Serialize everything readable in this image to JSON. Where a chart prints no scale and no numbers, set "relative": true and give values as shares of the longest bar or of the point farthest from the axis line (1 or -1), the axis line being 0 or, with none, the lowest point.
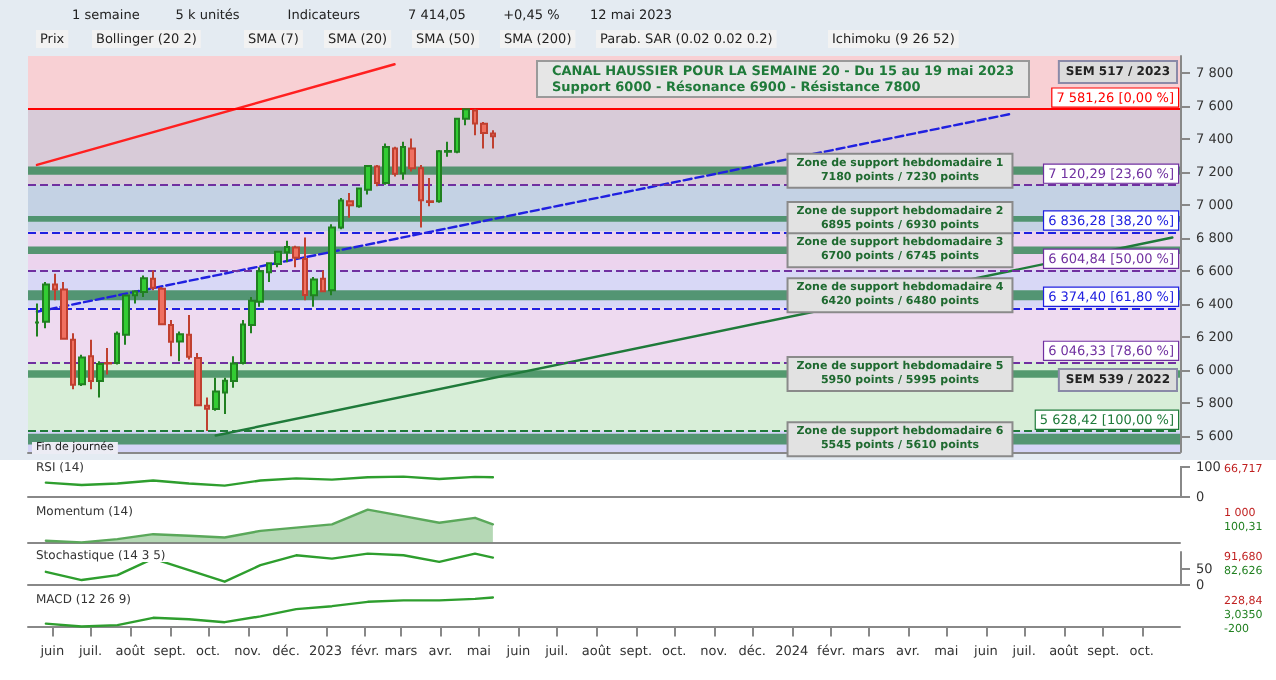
{
  "chart_data": [
    {
      "type": "candlestick",
      "title": "CANAL HAUSSIER POUR LA SEMAINE 20 - Du 15 au 19 mai 2023",
      "subtitle": "Support 6000 - Résonance 6900 - Résistance 7800",
      "x": [
        "2022-05-20",
        "2022-05-27",
        "2022-06-03",
        "2022-06-10",
        "2022-06-17",
        "2022-06-24",
        "2022-07-01",
        "2022-07-08",
        "2022-07-15",
        "2022-07-22",
        "2022-07-29",
        "2022-08-05",
        "2022-08-12",
        "2022-08-19",
        "2022-08-26",
        "2022-09-02",
        "2022-09-09",
        "2022-09-16",
        "2022-09-23",
        "2022-09-30",
        "2022-10-07",
        "2022-10-14",
        "2022-10-21",
        "2022-10-28",
        "2022-11-04",
        "2022-11-11",
        "2022-11-18",
        "2022-11-25",
        "2022-12-02",
        "2022-12-09",
        "2022-12-16",
        "2022-12-23",
        "2022-12-30",
        "2023-01-06",
        "2023-01-13",
        "2023-01-20",
        "2023-01-27",
        "2023-02-03",
        "2023-02-10",
        "2023-02-17",
        "2023-02-24",
        "2023-03-03",
        "2023-03-10",
        "2023-03-17",
        "2023-03-24",
        "2023-03-31",
        "2023-04-07",
        "2023-04-14",
        "2023-04-21",
        "2023-04-28",
        "2023-05-05",
        "2023-05-12"
      ],
      "ohlc": [
        [
          6285,
          6400,
          6200,
          6285
        ],
        [
          6290,
          6530,
          6250,
          6515
        ],
        [
          6515,
          6580,
          6420,
          6485
        ],
        [
          6485,
          6530,
          6180,
          6187
        ],
        [
          6180,
          6220,
          5880,
          5907
        ],
        [
          5910,
          6090,
          5900,
          6073
        ],
        [
          6080,
          6180,
          5880,
          5931
        ],
        [
          5930,
          6050,
          5830,
          6033
        ],
        [
          6040,
          6130,
          5970,
          6036
        ],
        [
          6040,
          6230,
          6030,
          6217
        ],
        [
          6210,
          6450,
          6150,
          6449
        ],
        [
          6450,
          6480,
          6400,
          6472
        ],
        [
          6470,
          6570,
          6440,
          6553
        ],
        [
          6550,
          6600,
          6480,
          6495
        ],
        [
          6490,
          6500,
          6270,
          6274
        ],
        [
          6270,
          6300,
          6080,
          6168
        ],
        [
          6170,
          6230,
          6050,
          6213
        ],
        [
          6210,
          6330,
          6060,
          6077
        ],
        [
          6070,
          6100,
          5780,
          5783
        ],
        [
          5780,
          5830,
          5628,
          5762
        ],
        [
          5760,
          5950,
          5750,
          5866
        ],
        [
          5860,
          5950,
          5730,
          5932
        ],
        [
          5930,
          6080,
          5890,
          6036
        ],
        [
          6040,
          6300,
          6030,
          6273
        ],
        [
          6270,
          6440,
          6220,
          6416
        ],
        [
          6410,
          6620,
          6380,
          6595
        ],
        [
          6590,
          6650,
          6530,
          6644
        ],
        [
          6640,
          6720,
          6620,
          6713
        ],
        [
          6710,
          6780,
          6650,
          6742
        ],
        [
          6740,
          6750,
          6620,
          6677
        ],
        [
          6670,
          6800,
          6420,
          6452
        ],
        [
          6450,
          6560,
          6380,
          6546
        ],
        [
          6550,
          6600,
          6470,
          6474
        ],
        [
          6480,
          6880,
          6450,
          6860
        ],
        [
          6860,
          7040,
          6850,
          7024
        ],
        [
          7020,
          7070,
          6920,
          6995
        ],
        [
          6990,
          7100,
          6980,
          7097
        ],
        [
          7090,
          7240,
          7060,
          7234
        ],
        [
          7230,
          7240,
          7110,
          7130
        ],
        [
          7130,
          7370,
          7120,
          7348
        ],
        [
          7340,
          7350,
          7170,
          7187
        ],
        [
          7190,
          7380,
          7150,
          7348
        ],
        [
          7340,
          7400,
          7200,
          7220
        ],
        [
          7220,
          7240,
          6860,
          7026
        ],
        [
          7020,
          7160,
          6990,
          7015
        ],
        [
          7020,
          7330,
          7010,
          7322
        ],
        [
          7320,
          7380,
          7290,
          7325
        ],
        [
          7320,
          7520,
          7310,
          7519
        ],
        [
          7520,
          7581,
          7480,
          7577
        ],
        [
          7570,
          7581,
          7420,
          7491
        ],
        [
          7490,
          7500,
          7340,
          7433
        ],
        [
          7430,
          7450,
          7340,
          7414
        ]
      ],
      "series": [
        {
          "type": "line",
          "color": "#ff2020",
          "x": [
            "2022-05-20",
            "2023-02-24"
          ],
          "values": [
            7240,
            7850
          ]
        },
        {
          "type": "line",
          "color": "#1f7a3a",
          "x": [
            "2022-10-07",
            "2024-10-25"
          ],
          "values": [
            5600,
            6800
          ]
        },
        {
          "type": "line",
          "color": "#2020e0",
          "line_style": "dashed",
          "x": [
            "2022-05-20",
            "2024-06-21"
          ],
          "values": [
            6350,
            7550
          ]
        }
      ],
      "xlim": [
        "2022-05-13",
        "2024-10-31"
      ],
      "ylim": [
        5500,
        7900
      ],
      "yticks": [
        {
          "value": 5600,
          "label": "5 600"
        },
        {
          "value": 5800,
          "label": "5 800"
        },
        {
          "value": 6000,
          "label": "6 000"
        },
        {
          "value": 6200,
          "label": "6 200"
        },
        {
          "value": 6400,
          "label": "6 400"
        },
        {
          "value": 6600,
          "label": "6 600"
        },
        {
          "value": 6800,
          "label": "6 800"
        },
        {
          "value": 7000,
          "label": "7 000"
        },
        {
          "value": 7200,
          "label": "7 200"
        },
        {
          "value": 7400,
          "label": "7 400"
        },
        {
          "value": 7600,
          "label": "7 600"
        },
        {
          "value": 7800,
          "label": "7 800"
        }
      ],
      "tick_labels": "y",
      "ref_lines": [
        {
          "axis": "y",
          "value": 7581.26,
          "label": "7 581,26 [0,00 %]",
          "color": "#ff0000"
        },
        {
          "axis": "y",
          "value": 7120.29,
          "label": "7 120,29 [23,60 %]",
          "color": "#7030a0"
        },
        {
          "axis": "y",
          "value": 6836.28,
          "label": "6 836,28 [38,20 %]",
          "color": "#2020e0"
        },
        {
          "axis": "y",
          "value": 6604.84,
          "label": "6 604,84 [50,00 %]",
          "color": "#7030a0"
        },
        {
          "axis": "y",
          "value": 6374.4,
          "label": "6 374,40 [61,80 %]",
          "color": "#2020e0"
        },
        {
          "axis": "y",
          "value": 6046.33,
          "label": "6 046,33 [78,60 %]",
          "color": "#7030a0"
        },
        {
          "axis": "y",
          "value": 5628.42,
          "label": "5 628,42 [100,00 %]",
          "color": "#1f7a3a"
        }
      ],
      "bands": [
        {
          "axis": "y",
          "from": 7581.26,
          "to": 7900,
          "color": "#f8d0d4"
        },
        {
          "axis": "y",
          "from": 7120.29,
          "to": 7581.26,
          "color": "#d8cbd8"
        },
        {
          "axis": "y",
          "from": 6836.28,
          "to": 7120.29,
          "color": "#c4d2e4"
        },
        {
          "axis": "y",
          "from": 6604.84,
          "to": 6836.28,
          "color": "#ecd4ee"
        },
        {
          "axis": "y",
          "from": 6374.4,
          "to": 6604.84,
          "color": "#d8d8f6"
        },
        {
          "axis": "y",
          "from": 6046.33,
          "to": 6374.4,
          "color": "#eedaf0"
        },
        {
          "axis": "y",
          "from": 5628.42,
          "to": 6046.33,
          "color": "#d8eed8"
        },
        {
          "axis": "y",
          "from": 5500,
          "to": 5628.42,
          "color": "#d4d4f6"
        },
        {
          "axis": "y",
          "from": 7180,
          "to": 7230,
          "color": "#3c8a5c",
          "label": "Zone de support hebdomadaire 1\n7180 points / 7230 points"
        },
        {
          "axis": "y",
          "from": 6895,
          "to": 6930,
          "color": "#3c8a5c",
          "label": "Zone de support hebdomadaire 2\n6895 points / 6930 points"
        },
        {
          "axis": "y",
          "from": 6700,
          "to": 6745,
          "color": "#3c8a5c",
          "label": "Zone de support hebdomadaire 3\n6700 points / 6745 points"
        },
        {
          "axis": "y",
          "from": 6420,
          "to": 6480,
          "color": "#3c8a5c",
          "label": "Zone de support hebdomadaire 4\n6420 points / 6480 points"
        },
        {
          "axis": "y",
          "from": 5950,
          "to": 5995,
          "color": "#3c8a5c",
          "label": "Zone de support hebdomadaire 5\n5950 points / 5995 points"
        },
        {
          "axis": "y",
          "from": 5545,
          "to": 5610,
          "color": "#3c8a5c",
          "label": "Zone de support hebdomadaire 6\n5545 points / 5610 points"
        }
      ],
      "annotations": [
        "1 semaine",
        "5 k unités",
        "Indicateurs",
        "7 414,05",
        "+0,45 %",
        "12 mai 2023",
        "Prix",
        "Bollinger (20 2)",
        "SMA (7)",
        "SMA (20)",
        "SMA (50)",
        "SMA (200)",
        "Parab. SAR (0.02 0.02 0.2)",
        "Ichimoku (9 26 52)",
        "SEM 517 / 2023",
        "SEM 539 / 2022",
        "Fin de journée"
      ]
    },
    {
      "type": "line",
      "title": "RSI (14)",
      "x": [
        "2022-05-27",
        "2022-06-24",
        "2022-07-22",
        "2022-08-19",
        "2022-09-16",
        "2022-10-14",
        "2022-11-11",
        "2022-12-09",
        "2023-01-06",
        "2023-02-03",
        "2023-03-03",
        "2023-03-31",
        "2023-04-28",
        "2023-05-12"
      ],
      "series": [
        {
          "color": "#2e9e2e",
          "values": [
            48,
            40,
            45,
            55,
            45,
            38,
            55,
            62,
            58,
            66,
            68,
            60,
            67,
            66
          ]
        }
      ],
      "xlim": [
        "2022-05-13",
        "2024-10-31"
      ],
      "ylim": [
        0,
        100
      ],
      "yticks": [
        0,
        100
      ],
      "tick_labels": "y",
      "annotations": [
        "66,717"
      ]
    },
    {
      "type": "area",
      "title": "Momentum (14)",
      "x": [
        "2022-05-27",
        "2022-06-24",
        "2022-07-22",
        "2022-08-19",
        "2022-09-16",
        "2022-10-14",
        "2022-11-11",
        "2022-12-09",
        "2023-01-06",
        "2023-02-03",
        "2023-03-03",
        "2023-03-31",
        "2023-04-28",
        "2023-05-12"
      ],
      "series": [
        {
          "color": "#5aa85a",
          "values": [
            0.05,
            0,
            0.1,
            0.25,
            0.2,
            0.15,
            0.35,
            0.45,
            0.55,
            1,
            0.8,
            0.6,
            0.75,
            0.55
          ]
        }
      ],
      "xlim": [
        "2022-05-13",
        "2024-10-31"
      ],
      "relative": true,
      "tick_labels": false,
      "annotations": [
        "1 000",
        "100,31"
      ]
    },
    {
      "type": "line",
      "title": "Stochastique (14 3 5)",
      "x": [
        "2022-05-27",
        "2022-06-24",
        "2022-07-22",
        "2022-08-19",
        "2022-09-16",
        "2022-10-14",
        "2022-11-11",
        "2022-12-09",
        "2023-01-06",
        "2023-02-03",
        "2023-03-03",
        "2023-03-31",
        "2023-04-28",
        "2023-05-12"
      ],
      "series": [
        {
          "color": "#2e9e2e",
          "values": [
            40,
            15,
            30,
            80,
            45,
            10,
            60,
            90,
            80,
            95,
            90,
            70,
            95,
            83
          ]
        }
      ],
      "xlim": [
        "2022-05-13",
        "2024-10-31"
      ],
      "ylim": [
        0,
        100
      ],
      "yticks": [
        0,
        50
      ],
      "tick_labels": "y",
      "annotations": [
        "91,680",
        "82,626"
      ]
    },
    {
      "type": "line",
      "title": "MACD (12 26 9)",
      "x": [
        "2022-05-27",
        "2022-06-24",
        "2022-07-22",
        "2022-08-19",
        "2022-09-16",
        "2022-10-14",
        "2022-11-11",
        "2022-12-09",
        "2023-01-06",
        "2023-02-03",
        "2023-03-03",
        "2023-03-31",
        "2023-04-28",
        "2023-05-12"
      ],
      "series": [
        {
          "color": "#2e9e2e",
          "values": [
            0.1,
            0,
            0.05,
            0.3,
            0.25,
            0.15,
            0.35,
            0.6,
            0.7,
            0.85,
            0.9,
            0.9,
            0.95,
            1
          ]
        }
      ],
      "xlim": [
        "2022-05-13",
        "2024-10-31"
      ],
      "relative": true,
      "tick_labels": "x",
      "xticks": [
        {
          "value": "2022-06",
          "label": "juin"
        },
        {
          "value": "2022-07",
          "label": "juil."
        },
        {
          "value": "2022-08",
          "label": "août"
        },
        {
          "value": "2022-09",
          "label": "sept."
        },
        {
          "value": "2022-10",
          "label": "oct."
        },
        {
          "value": "2022-11",
          "label": "nov."
        },
        {
          "value": "2022-12",
          "label": "déc."
        },
        {
          "value": "2023-01",
          "label": "2023"
        },
        {
          "value": "2023-02",
          "label": "févr."
        },
        {
          "value": "2023-03",
          "label": "mars"
        },
        {
          "value": "2023-04",
          "label": "avr."
        },
        {
          "value": "2023-05",
          "label": "mai"
        },
        {
          "value": "2023-06",
          "label": "juin"
        },
        {
          "value": "2023-07",
          "label": "juil."
        },
        {
          "value": "2023-08",
          "label": "août"
        },
        {
          "value": "2023-09",
          "label": "sept."
        },
        {
          "value": "2023-10",
          "label": "oct."
        },
        {
          "value": "2023-11",
          "label": "nov."
        },
        {
          "value": "2023-12",
          "label": "déc."
        },
        {
          "value": "2024-01",
          "label": "2024"
        },
        {
          "value": "2024-02",
          "label": "févr."
        },
        {
          "value": "2024-03",
          "label": "mars"
        },
        {
          "value": "2024-04",
          "label": "avr."
        },
        {
          "value": "2024-05",
          "label": "mai"
        },
        {
          "value": "2024-06",
          "label": "juin"
        },
        {
          "value": "2024-07",
          "label": "juil."
        },
        {
          "value": "2024-08",
          "label": "août"
        },
        {
          "value": "2024-09",
          "label": "sept."
        },
        {
          "value": "2024-10",
          "label": "oct."
        }
      ],
      "annotations": [
        "228,84",
        "3,0350",
        "-200"
      ]
    }
  ]
}
